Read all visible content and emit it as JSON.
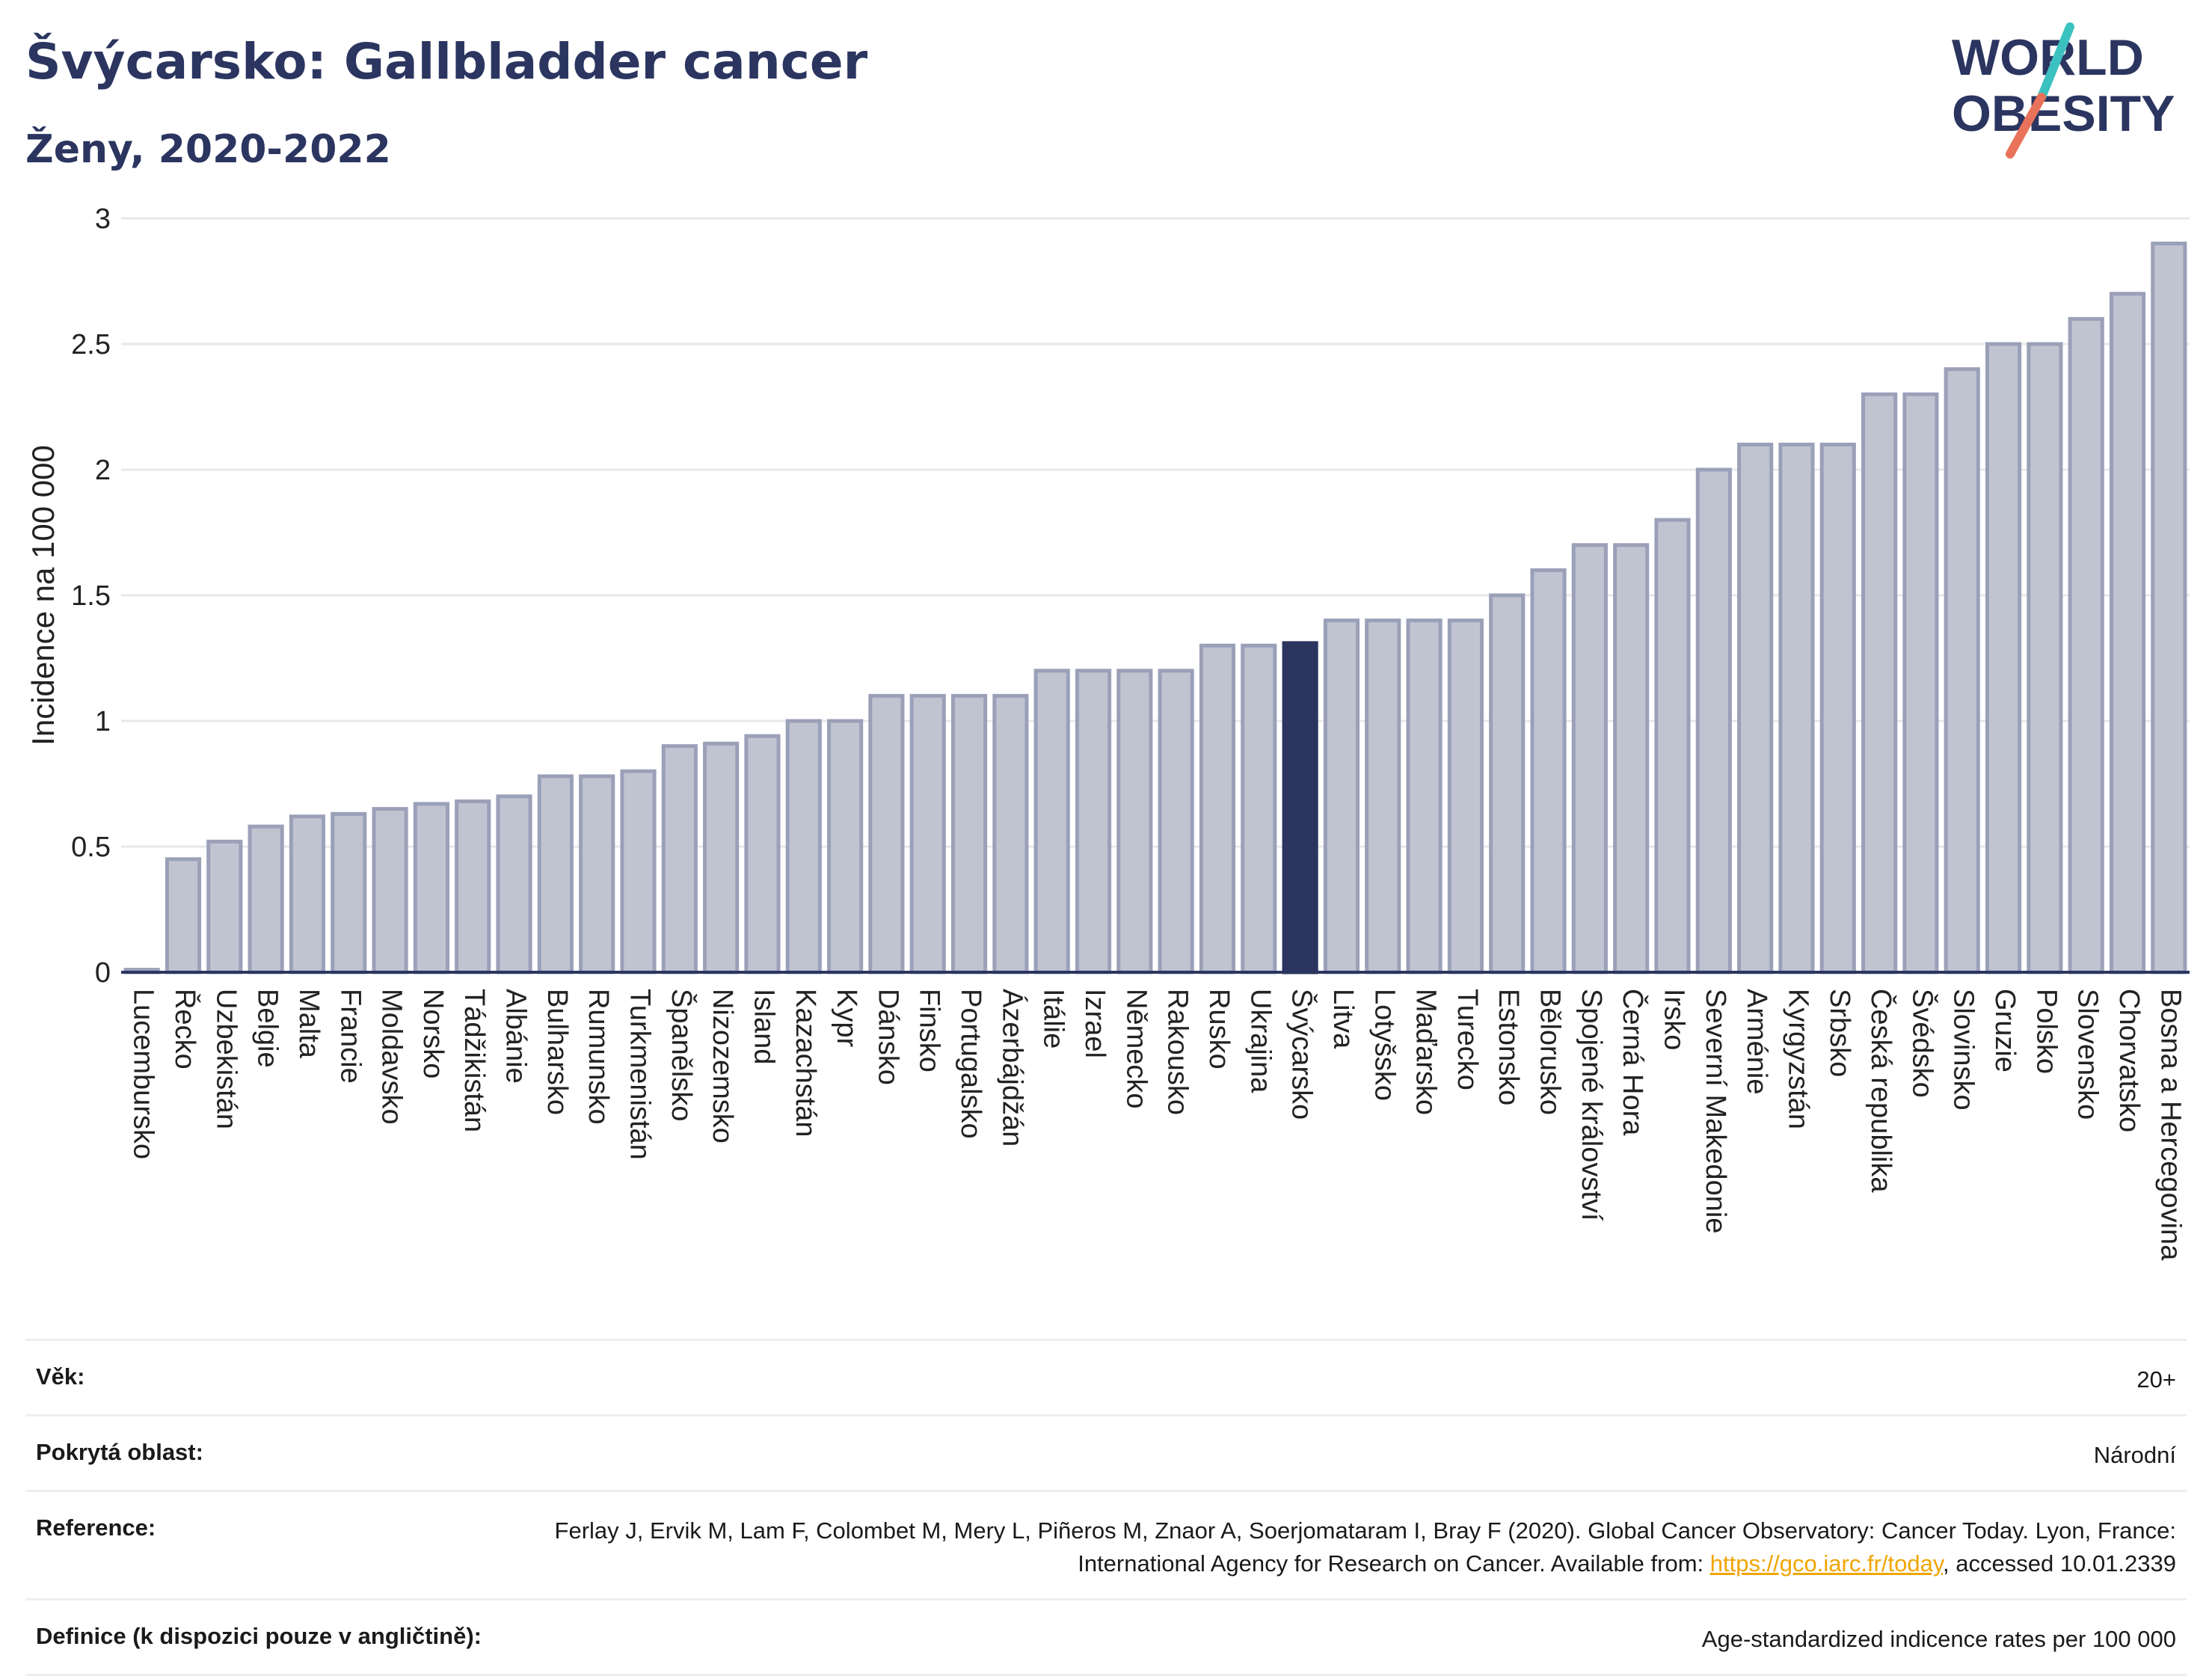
{
  "header": {
    "title": "Švýcarsko: Gallbladder cancer",
    "subtitle": "Ženy, 2020-2022"
  },
  "logo": {
    "line1": "WORLD",
    "line2": "OBESITY",
    "accent_colors": [
      "#3cc1c1",
      "#e8735a"
    ]
  },
  "chart_data": {
    "type": "bar",
    "ylabel": "Incidence na 100 000",
    "ylim": [
      0,
      3
    ],
    "yticks": [
      0,
      0.5,
      1,
      1.5,
      2,
      2.5,
      3
    ],
    "ytick_labels": [
      "0",
      "0.5",
      "1",
      "1.5",
      "2",
      "2.5",
      "3"
    ],
    "grid": true,
    "highlight": "Švýcarsko",
    "colors": {
      "bar": "#c0c4d1",
      "bar_edge": "#9aa0b8",
      "highlight": "#2b3560",
      "grid": "#e8e8ec"
    },
    "categories": [
      "Lucembursko",
      "Řecko",
      "Uzbekistán",
      "Belgie",
      "Malta",
      "Francie",
      "Moldavsko",
      "Norsko",
      "Tádžikistán",
      "Albánie",
      "Bulharsko",
      "Rumunsko",
      "Turkmenistán",
      "Španělsko",
      "Nizozemsko",
      "Island",
      "Kazachstán",
      "Kypr",
      "Dánsko",
      "Finsko",
      "Portugalsko",
      "Ázerbájdžán",
      "Itálie",
      "Izrael",
      "Německo",
      "Rakousko",
      "Rusko",
      "Ukrajina",
      "Švýcarsko",
      "Litva",
      "Lotyšsko",
      "Maďarsko",
      "Turecko",
      "Estonsko",
      "Bělorusko",
      "Spojené království",
      "Černá Hora",
      "Irsko",
      "Severní Makedonie",
      "Arménie",
      "Kyrgyzstán",
      "Srbsko",
      "Česká republika",
      "Švédsko",
      "Slovinsko",
      "Gruzie",
      "Polsko",
      "Slovensko",
      "Chorvatsko",
      "Bosna a Hercegovina"
    ],
    "values": [
      0.01,
      0.45,
      0.52,
      0.58,
      0.62,
      0.63,
      0.65,
      0.67,
      0.68,
      0.7,
      0.78,
      0.78,
      0.8,
      0.9,
      0.91,
      0.94,
      1.0,
      1.0,
      1.1,
      1.1,
      1.1,
      1.1,
      1.2,
      1.2,
      1.2,
      1.2,
      1.3,
      1.3,
      1.31,
      1.4,
      1.4,
      1.4,
      1.4,
      1.5,
      1.6,
      1.7,
      1.7,
      1.8,
      2.0,
      2.1,
      2.1,
      2.1,
      2.3,
      2.3,
      2.4,
      2.5,
      2.5,
      2.6,
      2.7,
      2.9
    ]
  },
  "meta": {
    "age_label": "Věk:",
    "age_value": "20+",
    "coverage_label": "Pokrytá oblast:",
    "coverage_value": "Národní",
    "reference_label": "Reference:",
    "reference_text_1": "Ferlay J, Ervik M, Lam F, Colombet M, Mery L, Piñeros M, Znaor A, Soerjomataram I, Bray F (2020). Global Cancer Observatory: Cancer Today. Lyon, France: International Agency for Research on Cancer. Available from: ",
    "reference_link": "https://gco.iarc.fr/today",
    "reference_text_2": ", accessed 10.01.2339",
    "definition_label": "Definice (k dispozici pouze v angličtině):",
    "definition_value": "Age-standardized indicence rates per 100 000"
  }
}
